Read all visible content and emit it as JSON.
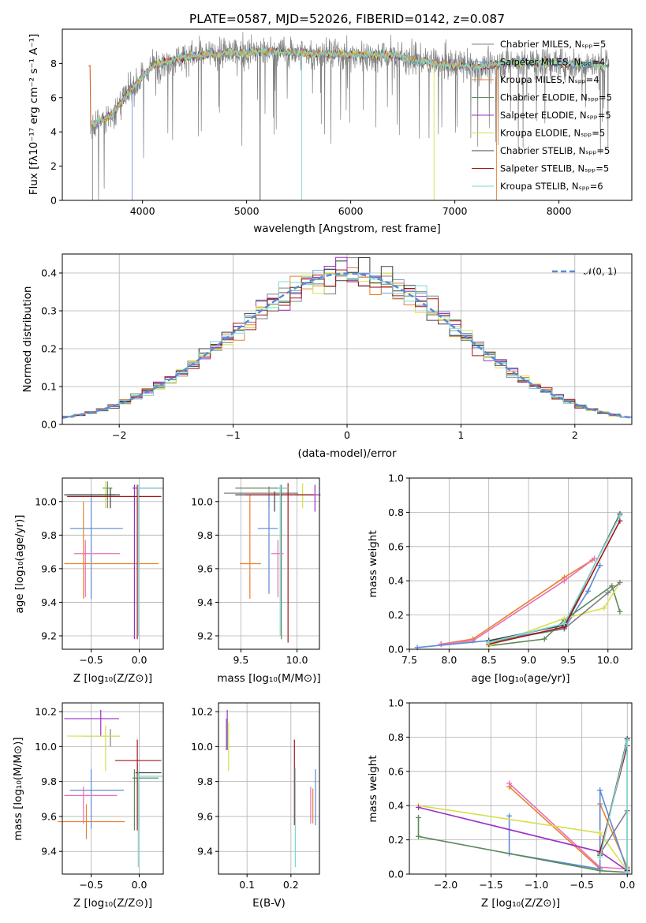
{
  "chart_data": [
    {
      "id": "spectrum",
      "type": "line",
      "title": "PLATE=0587, MJD=52026, FIBERID=0142, z=0.087",
      "xlabel": "wavelength [Angstrom, rest frame]",
      "ylabel": "Flux [fλ10⁻¹⁷ erg cm⁻² s⁻¹ A⁻¹]",
      "xlim": [
        3230,
        8700
      ],
      "ylim": [
        0,
        10
      ],
      "xticks": [
        4000,
        5000,
        6000,
        7000,
        8000
      ],
      "yticks": [
        0,
        2,
        4,
        6,
        8
      ],
      "grid": false,
      "legend_position": "right",
      "series": [
        {
          "name": "Chabrier MILES, Nₛₚₚ=5",
          "color": "#808080"
        },
        {
          "name": "Salpeter MILES, Nₛₚₚ=4",
          "color": "#6f9bd8"
        },
        {
          "name": "Kroupa MILES, Nₛₚₚ=4",
          "color": "#e8802f"
        },
        {
          "name": "Chabrier ELODIE, Nₛₚₚ=5",
          "color": "#5b8a5b"
        },
        {
          "name": "Salpeter ELODIE, Nₛₚₚ=5",
          "color": "#9b30c8"
        },
        {
          "name": "Kroupa ELODIE, Nₛₚₚ=5",
          "color": "#d7e04a"
        },
        {
          "name": "Chabrier STELIB, Nₛₚₚ=5",
          "color": "#404040"
        },
        {
          "name": "Salpeter STELIB, Nₛₚₚ=5",
          "color": "#a01818"
        },
        {
          "name": "Kroupa STELIB, Nₛₚₚ=6",
          "color": "#7fd6d6"
        }
      ],
      "continuum": [
        [
          3500,
          4.3
        ],
        [
          3700,
          5.0
        ],
        [
          3900,
          6.5
        ],
        [
          4100,
          7.9
        ],
        [
          4400,
          8.4
        ],
        [
          4800,
          8.6
        ],
        [
          5200,
          8.7
        ],
        [
          5600,
          8.6
        ],
        [
          6000,
          8.5
        ],
        [
          6400,
          8.5
        ],
        [
          6800,
          8.0
        ],
        [
          7200,
          7.8
        ],
        [
          7600,
          8.1
        ],
        [
          8000,
          8.0
        ],
        [
          8400,
          7.9
        ]
      ]
    },
    {
      "id": "residuals",
      "type": "histogram",
      "xlabel": "(data-model)/error",
      "ylabel": "Normed distribution",
      "xlim": [
        -2.5,
        2.5
      ],
      "ylim": [
        0,
        0.45
      ],
      "xticks": [
        -2,
        -1,
        0,
        1,
        2
      ],
      "yticks": [
        0.0,
        0.1,
        0.2,
        0.3,
        0.4
      ],
      "grid": true,
      "legend": [
        {
          "name": "𝒩(0, 1)",
          "color": "#5b8bd6",
          "style": "dashed"
        }
      ],
      "legend_position": "top-right",
      "bin_width": 0.1
    },
    {
      "id": "age-vs-Z",
      "type": "errorbar",
      "xlabel": "Z [log₁₀(Z/Z⊙)]",
      "ylabel": "age  [log₁₀(age/yr)]",
      "xlim": [
        -0.8,
        0.25
      ],
      "ylim": [
        9.12,
        10.14
      ],
      "xticks": [
        -0.5,
        0.0
      ],
      "yticks": [
        9.2,
        9.4,
        9.6,
        9.8,
        10.0
      ],
      "grid": true,
      "points": [
        {
          "x": -0.33,
          "y": 10.04,
          "xerr": [
            0.41,
            0.08
          ],
          "yerr": [
            0.08,
            0.04
          ],
          "color": "#808080"
        },
        {
          "x": -0.5,
          "y": 9.84,
          "xerr": [
            0.22,
            0.33
          ],
          "yerr": [
            0.42,
            0.2
          ],
          "color": "#5b8bd6"
        },
        {
          "x": -0.58,
          "y": 9.63,
          "xerr": [
            0.2,
            0.78
          ],
          "yerr": [
            0.21,
            0.37
          ],
          "color": "#e8802f"
        },
        {
          "x": -0.33,
          "y": 10.08,
          "xerr": [
            0.05,
            0.05
          ],
          "yerr": [
            0.06,
            0.04
          ],
          "color": "#5b8a5b"
        },
        {
          "x": -0.05,
          "y": 10.08,
          "xerr": [
            0.02,
            0.3
          ],
          "yerr": [
            0.9,
            0.02
          ],
          "color": "#9b30c8"
        },
        {
          "x": -0.35,
          "y": 10.04,
          "xerr": [
            0.05,
            0.03
          ],
          "yerr": [
            0.08,
            0.08
          ],
          "color": "#d7e04a"
        },
        {
          "x": -0.3,
          "y": 10.04,
          "xerr": [
            0.48,
            0.1
          ],
          "yerr": [
            0.08,
            0.04
          ],
          "color": "#404040"
        },
        {
          "x": -0.02,
          "y": 10.03,
          "xerr": [
            0.73,
            0.25
          ],
          "yerr": [
            0.85,
            0.07
          ],
          "color": "#a01818"
        },
        {
          "x": -0.56,
          "y": 9.69,
          "xerr": [
            0.12,
            0.36
          ],
          "yerr": [
            0.26,
            0.08
          ],
          "color": "#e86fb5"
        },
        {
          "x": -0.01,
          "y": 10.08,
          "xerr": [
            0.01,
            0.26
          ],
          "yerr": [
            0.88,
            0.02
          ],
          "color": "#7fd6d6"
        }
      ]
    },
    {
      "id": "age-vs-mass",
      "type": "errorbar",
      "xlabel": "mass [log₁₀(M/M⊙)]",
      "ylabel": "",
      "xlim": [
        9.3,
        10.2
      ],
      "ylim": [
        9.12,
        10.14
      ],
      "xticks": [
        9.5,
        10.0
      ],
      "yticks": [
        9.2,
        9.4,
        9.6,
        9.8,
        10.0
      ],
      "grid": true,
      "points": [
        {
          "x": 9.75,
          "y": 10.05,
          "xerr": [
            0.4,
            0.26
          ],
          "yerr": [
            0.08,
            0.04
          ],
          "color": "#808080"
        },
        {
          "x": 9.75,
          "y": 9.84,
          "xerr": [
            0.1,
            0.08
          ],
          "yerr": [
            0.39,
            0.2
          ],
          "color": "#5b8bd6"
        },
        {
          "x": 9.58,
          "y": 9.63,
          "xerr": [
            0.09,
            0.1
          ],
          "yerr": [
            0.21,
            0.41
          ],
          "color": "#e8802f"
        },
        {
          "x": 9.86,
          "y": 10.08,
          "xerr": [
            0.41,
            0.07
          ],
          "yerr": [
            0.9,
            0.02
          ],
          "color": "#5b8a5b"
        },
        {
          "x": 10.16,
          "y": 10.04,
          "xerr": [
            0.06,
            0.05
          ],
          "yerr": [
            0.1,
            0.06
          ],
          "color": "#9b30c8"
        },
        {
          "x": 10.05,
          "y": 10.04,
          "xerr": [
            0.06,
            0.03
          ],
          "yerr": [
            0.08,
            0.07
          ],
          "color": "#d7e04a"
        },
        {
          "x": 9.8,
          "y": 10.04,
          "xerr": [
            0.35,
            0.35
          ],
          "yerr": [
            0.1,
            0.02
          ],
          "color": "#404040"
        },
        {
          "x": 9.92,
          "y": 10.04,
          "xerr": [
            0.38,
            0.23
          ],
          "yerr": [
            0.88,
            0.07
          ],
          "color": "#a01818"
        },
        {
          "x": 9.83,
          "y": 9.69,
          "xerr": [
            0.06,
            0.05
          ],
          "yerr": [
            0.26,
            0.08
          ],
          "color": "#e86fb5"
        },
        {
          "x": 9.85,
          "y": 10.08,
          "xerr": [
            0.02,
            0.08
          ],
          "yerr": [
            0.88,
            0.02
          ],
          "color": "#7fd6d6"
        }
      ]
    },
    {
      "id": "weight-vs-age",
      "type": "line",
      "xlabel": "age  [log₁₀(age/yr)]",
      "ylabel": "mass weight",
      "xlim": [
        7.5,
        10.3
      ],
      "ylim": [
        0,
        1
      ],
      "xticks": [
        7.5,
        8.0,
        8.5,
        9.0,
        9.5,
        10.0
      ],
      "yticks": [
        0.0,
        0.2,
        0.4,
        0.6,
        0.8,
        1.0
      ],
      "grid": true,
      "series": [
        {
          "color": "#e8802f",
          "x": [
            7.9,
            8.3,
            9.45,
            9.8
          ],
          "y": [
            0.03,
            0.06,
            0.42,
            0.52
          ]
        },
        {
          "color": "#e86fb5",
          "x": [
            7.9,
            8.3,
            9.45,
            9.83
          ],
          "y": [
            0.03,
            0.05,
            0.4,
            0.53
          ]
        },
        {
          "color": "#5b8bd6",
          "x": [
            7.6,
            8.5,
            9.45,
            9.75,
            9.9
          ],
          "y": [
            0.01,
            0.05,
            0.12,
            0.34,
            0.49
          ]
        },
        {
          "color": "#5b8a5b",
          "x": [
            8.5,
            9.2,
            9.45,
            10.05,
            10.15
          ],
          "y": [
            0.02,
            0.06,
            0.17,
            0.37,
            0.22
          ]
        },
        {
          "color": "#d7e04a",
          "x": [
            8.5,
            9.45,
            9.95,
            10.15
          ],
          "y": [
            0.02,
            0.18,
            0.24,
            0.39
          ]
        },
        {
          "color": "#808080",
          "x": [
            8.5,
            9.45,
            10.0,
            10.15
          ],
          "y": [
            0.04,
            0.12,
            0.33,
            0.39
          ]
        },
        {
          "color": "#404040",
          "x": [
            8.5,
            9.45,
            10.15
          ],
          "y": [
            0.05,
            0.14,
            0.79
          ]
        },
        {
          "color": "#a01818",
          "x": [
            8.5,
            9.45,
            10.15
          ],
          "y": [
            0.03,
            0.13,
            0.75
          ]
        },
        {
          "color": "#7fd6d6",
          "x": [
            8.5,
            9.45,
            10.15
          ],
          "y": [
            0.04,
            0.15,
            0.78
          ]
        }
      ]
    },
    {
      "id": "mass-vs-Z",
      "type": "errorbar",
      "xlabel": "Z [log₁₀(Z/Z⊙)]",
      "ylabel": "mass [log₁₀(M/M⊙)]",
      "xlim": [
        -0.8,
        0.25
      ],
      "ylim": [
        9.27,
        10.25
      ],
      "xticks": [
        -0.5,
        0.0
      ],
      "yticks": [
        9.4,
        9.6,
        9.8,
        10.0,
        10.2
      ],
      "grid": true,
      "points": [
        {
          "x": -0.3,
          "y": 10.06,
          "xerr": [
            0.3,
            0.1
          ],
          "yerr": [
            0.06,
            0.04
          ],
          "color": "#808080"
        },
        {
          "x": -0.5,
          "y": 9.75,
          "xerr": [
            0.22,
            0.34
          ],
          "yerr": [
            0.22,
            0.12
          ],
          "color": "#5b8bd6"
        },
        {
          "x": -0.55,
          "y": 9.57,
          "xerr": [
            0.3,
            0.4
          ],
          "yerr": [
            0.1,
            0.1
          ],
          "color": "#e8802f"
        },
        {
          "x": -0.05,
          "y": 9.82,
          "xerr": [
            0.02,
            0.25
          ],
          "yerr": [
            0.3,
            0.05
          ],
          "color": "#5b8a5b"
        },
        {
          "x": -0.4,
          "y": 10.16,
          "xerr": [
            0.38,
            0.19
          ],
          "yerr": [
            0.1,
            0.05
          ],
          "color": "#9b30c8"
        },
        {
          "x": -0.35,
          "y": 10.06,
          "xerr": [
            0.4,
            0.15
          ],
          "yerr": [
            0.2,
            0.06
          ],
          "color": "#d7e04a"
        },
        {
          "x": -0.02,
          "y": 9.85,
          "xerr": [
            0.02,
            0.25
          ],
          "yerr": [
            0.3,
            0.05
          ],
          "color": "#404040"
        },
        {
          "x": -0.02,
          "y": 9.92,
          "xerr": [
            0.23,
            0.25
          ],
          "yerr": [
            0.4,
            0.12
          ],
          "color": "#a01818"
        },
        {
          "x": -0.58,
          "y": 9.72,
          "xerr": [
            0.2,
            0.35
          ],
          "yerr": [
            0.16,
            0.05
          ],
          "color": "#e86fb5"
        },
        {
          "x": -0.01,
          "y": 9.83,
          "xerr": [
            0.03,
            0.25
          ],
          "yerr": [
            0.52,
            0.03
          ],
          "color": "#7fd6d6"
        }
      ]
    },
    {
      "id": "mass-vs-EBV",
      "type": "errorbar",
      "xlabel": "E(B-V)",
      "ylabel": "",
      "xlim": [
        0.035,
        0.265
      ],
      "ylim": [
        9.27,
        10.25
      ],
      "xticks": [
        0.1,
        0.2
      ],
      "yticks": [
        9.4,
        9.6,
        9.8,
        10.0,
        10.2
      ],
      "grid": true,
      "points": [
        {
          "x": 0.055,
          "y": 10.16,
          "xerr": [
            0.0,
            0.0
          ],
          "yerr": [
            0.18,
            0.05
          ],
          "color": "#9b30c8"
        },
        {
          "x": 0.058,
          "y": 10.06,
          "xerr": [
            0.0,
            0.0
          ],
          "yerr": [
            0.2,
            0.08
          ],
          "color": "#d7e04a"
        },
        {
          "x": 0.053,
          "y": 10.08,
          "xerr": [
            0.0,
            0.0
          ],
          "yerr": [
            0.1,
            0.08
          ],
          "color": "#808080"
        },
        {
          "x": 0.208,
          "y": 9.95,
          "xerr": [
            0.0,
            0.0
          ],
          "yerr": [
            0.4,
            0.09
          ],
          "color": "#a01818"
        },
        {
          "x": 0.21,
          "y": 9.83,
          "xerr": [
            0.0,
            0.0
          ],
          "yerr": [
            0.52,
            0.05
          ],
          "color": "#7fd6d6"
        },
        {
          "x": 0.245,
          "y": 9.72,
          "xerr": [
            0.0,
            0.0
          ],
          "yerr": [
            0.16,
            0.05
          ],
          "color": "#e86fb5"
        },
        {
          "x": 0.25,
          "y": 9.66,
          "xerr": [
            0.0,
            0.0
          ],
          "yerr": [
            0.1,
            0.1
          ],
          "color": "#e8802f"
        },
        {
          "x": 0.256,
          "y": 9.75,
          "xerr": [
            0.0,
            0.0
          ],
          "yerr": [
            0.2,
            0.12
          ],
          "color": "#5b8bd6"
        }
      ]
    },
    {
      "id": "weight-vs-Z",
      "type": "line",
      "xlabel": "Z [log₁₀(Z/Z⊙)]",
      "ylabel": "mass weight",
      "xlim": [
        -2.4,
        0.05
      ],
      "ylim": [
        0,
        1
      ],
      "xticks": [
        -2.0,
        -1.5,
        -1.0,
        -0.5,
        0.0
      ],
      "yticks": [
        0.0,
        0.2,
        0.4,
        0.6,
        0.8,
        1.0
      ],
      "grid": true,
      "series": [
        {
          "color": "#e8802f",
          "x": [
            -1.3,
            -0.3,
            -0.3,
            0.0
          ],
          "y": [
            0.51,
            0.03,
            0.41,
            0.04
          ]
        },
        {
          "color": "#e86fb5",
          "x": [
            -1.3,
            -0.3,
            0.0
          ],
          "y": [
            0.53,
            0.04,
            0.03
          ]
        },
        {
          "color": "#5b8bd6",
          "x": [
            -1.3,
            -1.3,
            -0.3,
            -0.3,
            0.0
          ],
          "y": [
            0.34,
            0.12,
            0.03,
            0.49,
            0.02
          ]
        },
        {
          "color": "#5b8a5b",
          "x": [
            -2.3,
            -2.3,
            -0.3,
            0.0
          ],
          "y": [
            0.33,
            0.22,
            0.02,
            0.01
          ]
        },
        {
          "color": "#d7e04a",
          "x": [
            -2.3,
            -0.3,
            0.0
          ],
          "y": [
            0.4,
            0.24,
            0.02
          ]
        },
        {
          "color": "#9b30c8",
          "x": [
            -2.3,
            -0.3,
            0.0
          ],
          "y": [
            0.39,
            0.13,
            0.02
          ]
        },
        {
          "color": "#808080",
          "x": [
            -0.3,
            0.0,
            0.0
          ],
          "y": [
            0.12,
            0.37,
            0.03
          ]
        },
        {
          "color": "#404040",
          "x": [
            -0.3,
            0.0,
            0.0
          ],
          "y": [
            0.11,
            0.79,
            0.02
          ]
        },
        {
          "color": "#a01818",
          "x": [
            -0.3,
            0.0
          ],
          "y": [
            0.13,
            0.75
          ]
        },
        {
          "color": "#7fd6d6",
          "x": [
            -0.3,
            0.0,
            0.0
          ],
          "y": [
            0.1,
            0.78,
            0.01
          ]
        }
      ]
    }
  ]
}
